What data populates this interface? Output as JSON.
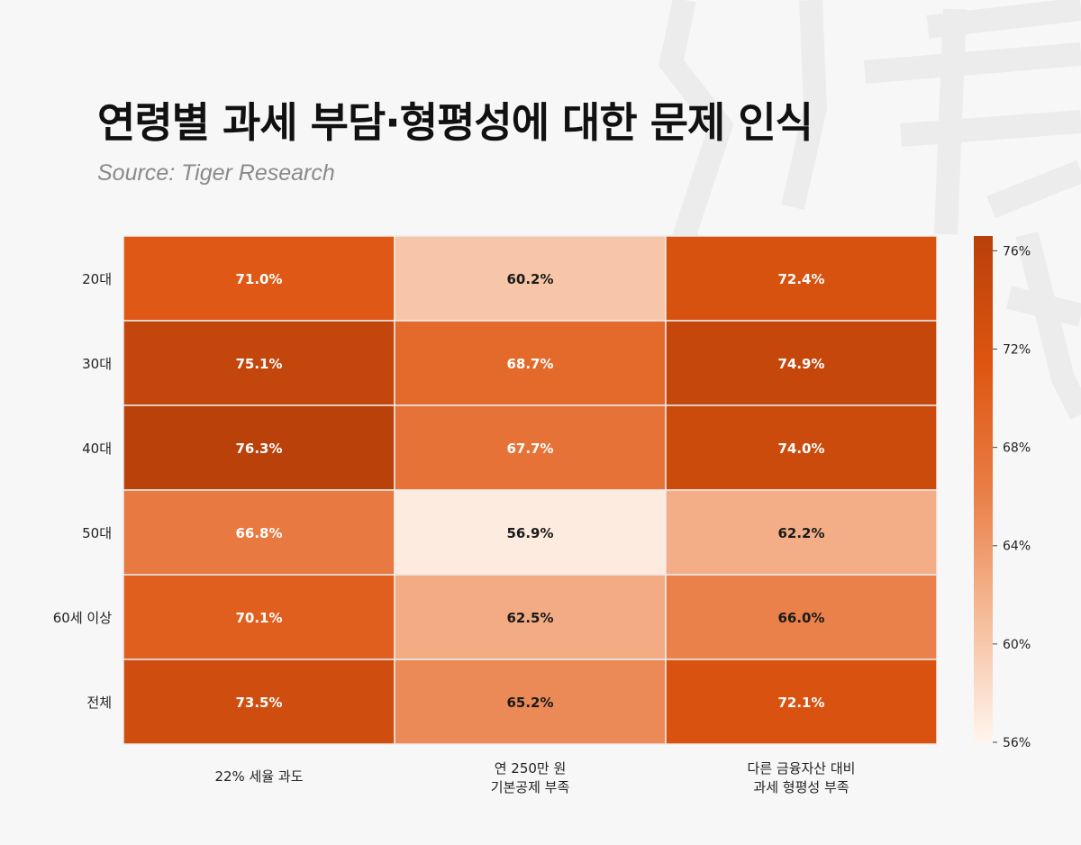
{
  "title": "연령별 과세 부담·형평성에 대한 문제 인식",
  "source": "Source: Tiger Research",
  "chart_data": {
    "type": "heatmap",
    "rows": [
      "20대",
      "30대",
      "40대",
      "50대",
      "60세 이상",
      "전체"
    ],
    "columns": [
      [
        "22% 세율 과도"
      ],
      [
        "연 250만 원",
        "기본공제 부족"
      ],
      [
        "다른 금융자산 대비",
        "과세 형평성 부족"
      ]
    ],
    "values": [
      [
        71.0,
        60.2,
        72.4
      ],
      [
        75.1,
        68.7,
        74.9
      ],
      [
        76.3,
        67.7,
        74.0
      ],
      [
        66.8,
        56.9,
        62.2
      ],
      [
        70.1,
        62.5,
        66.0
      ],
      [
        73.5,
        65.2,
        72.1
      ]
    ],
    "value_suffix": "%",
    "colorbar": {
      "min": 56,
      "max": 76.6,
      "ticks": [
        76,
        72,
        68,
        64,
        60,
        56
      ],
      "tick_suffix": "%",
      "colors": [
        "#fff5ee",
        "#f5bb98",
        "#e97d45",
        "#de5510",
        "#b8400a"
      ]
    }
  }
}
